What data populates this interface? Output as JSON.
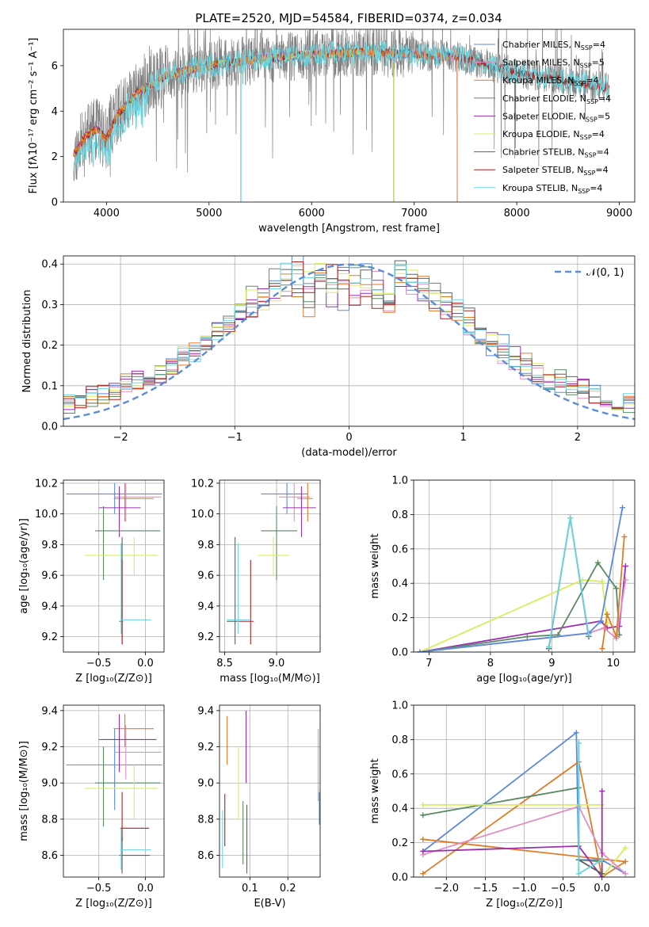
{
  "title": "PLATE=2520, MJD=54584, FIBERID=0374, z=0.034",
  "colors": {
    "blue": "#5b8bd9",
    "pink": "#e08fc4",
    "orange": "#e07b26",
    "green": "#5a8a63",
    "purple": "#9c2fb0",
    "yellow": "#d9ed5a",
    "dark": "#606060",
    "red": "#b02020",
    "cyan": "#6bd6e0",
    "spectrum_grey": "#808080",
    "grid": "#b0b0b0"
  },
  "chart_data": [
    {
      "id": "spectrum",
      "type": "line",
      "xlabel": "wavelength [Angstrom, rest frame]",
      "ylabel": "Flux [fλ10⁻¹⁷ erg cm⁻² s⁻¹ A⁻¹]",
      "xlim": [
        3580,
        9150
      ],
      "ylim": [
        0,
        7.6
      ],
      "xticks": [
        "4000",
        "5000",
        "6000",
        "7000",
        "8000",
        "9000"
      ],
      "yticks": [
        "0",
        "2",
        "4",
        "6"
      ],
      "x_range": [
        3680,
        8900
      ],
      "series": [
        {
          "name": "Chabrier MILES, N",
          "sub": "SSP",
          "suffix": "=4",
          "color": "blue"
        },
        {
          "name": "Salpeter MILES, N",
          "sub": "SSP",
          "suffix": "=5",
          "color": "pink"
        },
        {
          "name": "Kroupa MILES, N",
          "sub": "SSP",
          "suffix": "=4",
          "color": "orange"
        },
        {
          "name": "Chabrier ELODIE, N",
          "sub": "SSP",
          "suffix": "=4",
          "color": "green"
        },
        {
          "name": "Salpeter ELODIE, N",
          "sub": "SSP",
          "suffix": "=5",
          "color": "purple"
        },
        {
          "name": "Kroupa ELODIE, N",
          "sub": "SSP",
          "suffix": "=4",
          "color": "yellow"
        },
        {
          "name": "Chabrier STELIB, N",
          "sub": "SSP",
          "suffix": "=4",
          "color": "dark"
        },
        {
          "name": "Salpeter STELIB, N",
          "sub": "SSP",
          "suffix": "=4",
          "color": "red"
        },
        {
          "name": "Kroupa STELIB, N",
          "sub": "SSP",
          "suffix": "=4",
          "color": "cyan"
        }
      ],
      "continuum": {
        "x": [
          3680,
          3800,
          3900,
          4000,
          4100,
          4300,
          4600,
          5000,
          5500,
          6000,
          6500,
          7000,
          7400,
          8000,
          8500,
          8900
        ],
        "y": [
          2.1,
          2.9,
          3.2,
          2.8,
          3.8,
          4.8,
          5.6,
          6.0,
          6.3,
          6.5,
          6.6,
          6.5,
          6.4,
          5.7,
          5.3,
          5.0
        ]
      },
      "model_cutoffs": {
        "miles": 7420,
        "elodie": 6800
      }
    },
    {
      "id": "residuals",
      "type": "step",
      "xlabel": "(data-model)/error",
      "ylabel": "Normed distribution",
      "xlim": [
        -2.5,
        2.5
      ],
      "ylim": [
        0,
        0.42
      ],
      "xticks": [
        -2,
        -1,
        0,
        1,
        2
      ],
      "yticks": [
        0.0,
        0.1,
        0.2,
        0.3,
        0.4
      ],
      "xtick_labels": [
        "−2",
        "−1",
        "0",
        "1",
        "2"
      ],
      "ytick_labels": [
        "0.0",
        "0.1",
        "0.2",
        "0.3",
        "0.4"
      ],
      "bins": 50,
      "legend": "𝒩(0, 1)"
    },
    {
      "id": "age_vs_Z",
      "type": "errorbar",
      "xlabel": "Z [log₁₀(Z/Z⊙)]",
      "ylabel": "age  [log₁₀(age/yr)]",
      "xlim": [
        -0.88,
        0.2
      ],
      "ylim": [
        9.1,
        10.22
      ],
      "xticks": [
        -0.5,
        0.0
      ],
      "xtick_labels": [
        "−0.5",
        "0.0"
      ],
      "yticks": [
        9.2,
        9.4,
        9.6,
        9.8,
        10.0,
        10.2
      ],
      "ytick_labels": [
        "9.2",
        "9.4",
        "9.6",
        "9.8",
        "10.0",
        "10.2"
      ],
      "points": [
        {
          "c": "blue",
          "x": -0.33,
          "y": 10.13,
          "xe": [
            -0.85,
            0.18
          ],
          "ye": [
            10.0,
            10.2
          ]
        },
        {
          "c": "pink",
          "x": -0.21,
          "y": 10.11,
          "xe": [
            -0.33,
            0.17
          ],
          "ye": [
            9.95,
            10.2
          ]
        },
        {
          "c": "orange",
          "x": -0.22,
          "y": 10.1,
          "xe": [
            -0.34,
            0.09
          ],
          "ye": [
            9.95,
            10.2
          ]
        },
        {
          "c": "purple",
          "x": -0.28,
          "y": 10.04,
          "xe": [
            -0.5,
            -0.05
          ],
          "ye": [
            9.85,
            10.18
          ]
        },
        {
          "c": "green",
          "x": -0.45,
          "y": 9.89,
          "xe": [
            -0.54,
            0.16
          ],
          "ye": [
            9.57,
            10.05
          ]
        },
        {
          "c": "yellow",
          "x": -0.12,
          "y": 9.73,
          "xe": [
            -0.65,
            0.13
          ],
          "ye": [
            9.6,
            9.85
          ]
        },
        {
          "c": "dark",
          "x": -0.25,
          "y": 9.3,
          "xe": [
            -0.28,
            -0.25
          ],
          "ye": [
            9.15,
            9.85
          ]
        },
        {
          "c": "red",
          "x": -0.25,
          "y": 9.3,
          "xe": [
            -0.26,
            -0.24
          ],
          "ye": [
            9.15,
            9.7
          ]
        },
        {
          "c": "cyan",
          "x": -0.26,
          "y": 9.31,
          "xe": [
            -0.27,
            0.06
          ],
          "ye": [
            9.22,
            9.81
          ]
        }
      ]
    },
    {
      "id": "age_vs_mass",
      "type": "errorbar",
      "xlabel": "mass [log₁₀(M/M⊙)]",
      "ylabel": "",
      "xlim": [
        8.45,
        9.42
      ],
      "ylim": [
        9.1,
        10.22
      ],
      "xticks": [
        8.5,
        9.0
      ],
      "xtick_labels": [
        "8.5",
        "9.0"
      ],
      "yticks": [
        9.2,
        9.4,
        9.6,
        9.8,
        10.0,
        10.2
      ],
      "ytick_labels": [
        "9.2",
        "9.4",
        "9.6",
        "9.8",
        "10.0",
        "10.2"
      ],
      "points": [
        {
          "c": "blue",
          "x": 9.1,
          "y": 10.13,
          "xe": [
            8.85,
            9.3
          ],
          "ye": [
            10.0,
            10.2
          ]
        },
        {
          "c": "pink",
          "x": 9.17,
          "y": 10.11,
          "xe": [
            9.02,
            9.32
          ],
          "ye": [
            9.95,
            10.2
          ]
        },
        {
          "c": "orange",
          "x": 9.3,
          "y": 10.1,
          "xe": [
            9.2,
            9.35
          ],
          "ye": [
            9.95,
            10.2
          ]
        },
        {
          "c": "purple",
          "x": 9.24,
          "y": 10.04,
          "xe": [
            9.06,
            9.38
          ],
          "ye": [
            9.85,
            10.18
          ]
        },
        {
          "c": "green",
          "x": 9.0,
          "y": 9.89,
          "xe": [
            8.85,
            9.2
          ],
          "ye": [
            9.57,
            10.05
          ]
        },
        {
          "c": "yellow",
          "x": 8.97,
          "y": 9.73,
          "xe": [
            8.82,
            9.12
          ],
          "ye": [
            9.6,
            9.85
          ]
        },
        {
          "c": "dark",
          "x": 8.6,
          "y": 9.3,
          "xe": [
            8.52,
            8.62
          ],
          "ye": [
            9.15,
            9.85
          ]
        },
        {
          "c": "red",
          "x": 8.75,
          "y": 9.3,
          "xe": [
            8.62,
            8.78
          ],
          "ye": [
            9.15,
            9.7
          ]
        },
        {
          "c": "cyan",
          "x": 8.63,
          "y": 9.31,
          "xe": [
            8.52,
            8.75
          ],
          "ye": [
            9.22,
            9.81
          ]
        }
      ]
    },
    {
      "id": "weight_vs_age",
      "type": "line",
      "xlabel": "age  [log₁₀(age/yr)]",
      "ylabel": "mass weight",
      "xlim": [
        6.75,
        10.35
      ],
      "ylim": [
        0,
        1.0
      ],
      "xticks": [
        7,
        8,
        9,
        10
      ],
      "xtick_labels": [
        "7",
        "8",
        "9",
        "10"
      ],
      "yticks": [
        0.0,
        0.2,
        0.4,
        0.6,
        0.8,
        1.0
      ],
      "ytick_labels": [
        "0.0",
        "0.2",
        "0.4",
        "0.6",
        "0.8",
        "1.0"
      ],
      "series": [
        {
          "c": "yellow",
          "x": [
            6.85,
            9.5,
            9.82,
            9.9
          ],
          "y": [
            0.0,
            0.42,
            0.41,
            0.17
          ]
        },
        {
          "c": "purple",
          "x": [
            6.85,
            9.8,
            9.9,
            10.1,
            10.2
          ],
          "y": [
            0.0,
            0.18,
            0.14,
            0.15,
            0.5
          ]
        },
        {
          "c": "green",
          "x": [
            6.85,
            8.6,
            9.1,
            9.75,
            10.05,
            10.1
          ],
          "y": [
            0.0,
            0.09,
            0.1,
            0.52,
            0.37,
            0.1
          ]
        },
        {
          "c": "pink",
          "x": [
            6.85,
            9.6,
            9.85,
            10.05,
            10.2
          ],
          "y": [
            0.0,
            0.11,
            0.14,
            0.08,
            0.42
          ]
        },
        {
          "c": "blue",
          "x": [
            6.85,
            9.6,
            9.8,
            10.15
          ],
          "y": [
            0.0,
            0.11,
            0.18,
            0.84
          ]
        },
        {
          "c": "orange",
          "x": [
            9.82,
            9.9,
            10.05,
            10.18
          ],
          "y": [
            0.02,
            0.22,
            0.09,
            0.67
          ]
        },
        {
          "c": "dark",
          "x": [
            8.95,
            9.3,
            9.6
          ],
          "y": [
            0.02,
            0.78,
            0.09
          ]
        },
        {
          "c": "cyan",
          "x": [
            8.95,
            9.3,
            9.6
          ],
          "y": [
            0.03,
            0.78,
            0.1
          ]
        }
      ]
    },
    {
      "id": "mass_vs_Z",
      "type": "errorbar",
      "xlabel": "Z [log₁₀(Z/Z⊙)]",
      "ylabel": "mass [log₁₀(M/M⊙)]",
      "xlim": [
        -0.88,
        0.2
      ],
      "ylim": [
        8.48,
        9.43
      ],
      "xticks": [
        -0.5,
        0.0
      ],
      "xtick_labels": [
        "−0.5",
        "0.0"
      ],
      "yticks": [
        8.6,
        8.8,
        9.0,
        9.2,
        9.4
      ],
      "ytick_labels": [
        "8.6",
        "8.8",
        "9.0",
        "9.2",
        "9.4"
      ],
      "points": [
        {
          "c": "blue",
          "x": -0.33,
          "y": 9.1,
          "xe": [
            -0.85,
            0.18
          ],
          "ye": [
            8.85,
            9.3
          ]
        },
        {
          "c": "pink",
          "x": -0.21,
          "y": 9.17,
          "xe": [
            -0.33,
            0.17
          ],
          "ye": [
            9.02,
            9.32
          ]
        },
        {
          "c": "orange",
          "x": -0.22,
          "y": 9.3,
          "xe": [
            -0.34,
            0.09
          ],
          "ye": [
            9.2,
            9.38
          ]
        },
        {
          "c": "purple",
          "x": -0.28,
          "y": 9.24,
          "xe": [
            -0.5,
            0.12
          ],
          "ye": [
            9.06,
            9.38
          ]
        },
        {
          "c": "green",
          "x": -0.45,
          "y": 9.0,
          "xe": [
            -0.54,
            0.16
          ],
          "ye": [
            8.76,
            9.2
          ]
        },
        {
          "c": "yellow",
          "x": -0.12,
          "y": 8.97,
          "xe": [
            -0.65,
            0.13
          ],
          "ye": [
            8.8,
            9.1
          ]
        },
        {
          "c": "dark",
          "x": -0.25,
          "y": 8.6,
          "xe": [
            -0.28,
            0.05
          ],
          "ye": [
            8.5,
            8.7
          ]
        },
        {
          "c": "red",
          "x": -0.25,
          "y": 8.75,
          "xe": [
            -0.27,
            0.04
          ],
          "ye": [
            8.68,
            8.95
          ]
        },
        {
          "c": "cyan",
          "x": -0.26,
          "y": 8.63,
          "xe": [
            -0.27,
            0.06
          ],
          "ye": [
            8.52,
            8.75
          ]
        }
      ]
    },
    {
      "id": "mass_vs_ebv",
      "type": "errorbar",
      "xlabel": "E(B-V)",
      "ylabel": "",
      "xlim": [
        0.02,
        0.285
      ],
      "ylim": [
        8.48,
        9.43
      ],
      "xticks": [
        0.1,
        0.2
      ],
      "xtick_labels": [
        "0.1",
        "0.2"
      ],
      "yticks": [
        8.6,
        8.8,
        9.0,
        9.2,
        9.4
      ],
      "ytick_labels": [
        "8.6",
        "8.8",
        "9.0",
        "9.2",
        "9.4"
      ],
      "points": [
        {
          "c": "cyan",
          "x": 0.028,
          "y": 8.63,
          "xe": [
            0.027,
            0.029
          ],
          "ye": [
            8.53,
            8.85
          ]
        },
        {
          "c": "red",
          "x": 0.034,
          "y": 8.8,
          "xe": [
            0.033,
            0.035
          ],
          "ye": [
            8.65,
            8.94
          ]
        },
        {
          "c": "orange",
          "x": 0.04,
          "y": 9.2,
          "xe": [
            0.039,
            0.041
          ],
          "ye": [
            9.1,
            9.37
          ]
        },
        {
          "c": "yellow",
          "x": 0.07,
          "y": 9.0,
          "xe": [
            0.069,
            0.071
          ],
          "ye": [
            8.8,
            9.2
          ]
        },
        {
          "c": "green",
          "x": 0.082,
          "y": 8.75,
          "xe": [
            0.081,
            0.083
          ],
          "ye": [
            8.55,
            8.9
          ]
        },
        {
          "c": "purple",
          "x": 0.09,
          "y": 9.2,
          "xe": [
            0.089,
            0.091
          ],
          "ye": [
            9.0,
            9.4
          ]
        },
        {
          "c": "dark",
          "x": 0.092,
          "y": 8.7,
          "xe": [
            0.091,
            0.093
          ],
          "ye": [
            8.5,
            8.88
          ]
        },
        {
          "c": "pink",
          "x": 0.28,
          "y": 9.1,
          "xe": [
            0.279,
            0.281
          ],
          "ye": [
            8.9,
            9.3
          ]
        },
        {
          "c": "blue",
          "x": 0.283,
          "y": 8.85,
          "xe": [
            0.282,
            0.284
          ],
          "ye": [
            8.77,
            8.95
          ]
        }
      ]
    },
    {
      "id": "weight_vs_Z",
      "type": "line",
      "xlabel": "Z [log₁₀(Z/Z⊙)]",
      "ylabel": "mass weight",
      "xlim": [
        -2.42,
        0.42
      ],
      "ylim": [
        0,
        1.0
      ],
      "xticks": [
        -2.0,
        -1.5,
        -1.0,
        -0.5,
        0.0
      ],
      "xtick_labels": [
        "−2.0",
        "−1.5",
        "−1.0",
        "−0.5",
        "0.0"
      ],
      "yticks": [
        0.0,
        0.2,
        0.4,
        0.6,
        0.8,
        1.0
      ],
      "ytick_labels": [
        "0.0",
        "0.2",
        "0.4",
        "0.6",
        "0.8",
        "1.0"
      ],
      "series": [
        {
          "c": "blue",
          "x": [
            -2.3,
            -0.33,
            -0.3,
            0.0,
            0.3
          ],
          "y": [
            0.15,
            0.84,
            0.1,
            0.1,
            0.02
          ]
        },
        {
          "c": "orange",
          "x": [
            -2.3,
            -0.3,
            0.0,
            0.3,
            -2.3
          ],
          "y": [
            0.02,
            0.67,
            0.0,
            0.09,
            0.22
          ]
        },
        {
          "c": "green",
          "x": [
            -2.3,
            -0.3,
            -0.3,
            0.0
          ],
          "y": [
            0.36,
            0.52,
            0.1,
            0.09
          ]
        },
        {
          "c": "yellow",
          "x": [
            -2.3,
            0.0,
            0.0,
            0.3
          ],
          "y": [
            0.42,
            0.42,
            0.0,
            0.17
          ]
        },
        {
          "c": "pink",
          "x": [
            -2.3,
            -0.3,
            0.0,
            0.3
          ],
          "y": [
            0.13,
            0.41,
            0.14,
            0.02
          ]
        },
        {
          "c": "purple",
          "x": [
            -2.3,
            -0.3,
            0.0,
            0.0
          ],
          "y": [
            0.15,
            0.18,
            0.0,
            0.5
          ]
        },
        {
          "c": "dark",
          "x": [
            -0.3,
            -0.3,
            0.0
          ],
          "y": [
            0.78,
            0.1,
            0.02
          ]
        },
        {
          "c": "cyan",
          "x": [
            -0.3,
            -0.3,
            0.0
          ],
          "y": [
            0.78,
            0.02,
            0.1
          ]
        }
      ]
    }
  ]
}
